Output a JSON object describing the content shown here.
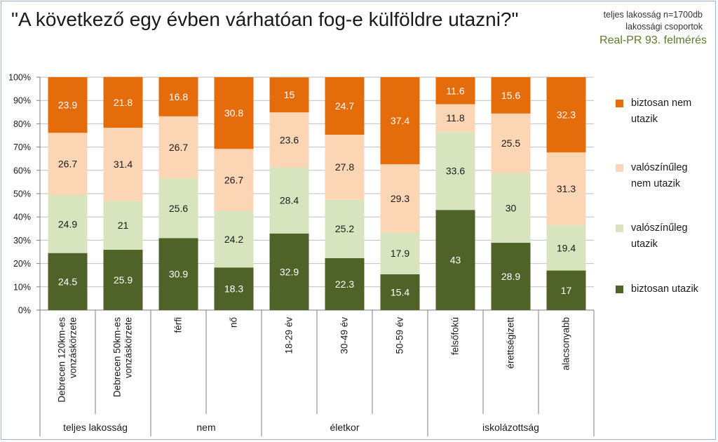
{
  "header": {
    "title": "\"A következő egy évben várhatóan fog-e külföldre utazni?\"",
    "note_line1": "teljes lakosság n=1700db",
    "note_line2": "lakossági csoportok",
    "source": "Real-PR 93. felmérés"
  },
  "chart_data": {
    "type": "bar",
    "stacked": true,
    "percent_stacked": true,
    "ylim": [
      0,
      100
    ],
    "y_ticks": [
      "0%",
      "10%",
      "20%",
      "30%",
      "40%",
      "50%",
      "60%",
      "70%",
      "80%",
      "90%",
      "100%"
    ],
    "grid": true,
    "legend_position": "right",
    "categories": [
      "Debrecen 120km-es vonzáskörzete",
      "Debrecen 50km-es vonzáskörzete",
      "férfi",
      "nő",
      "18-29 év",
      "30-49 év",
      "50-59 év",
      "felsőfokú",
      "érettségizett",
      "alacsonyabb"
    ],
    "category_lines": [
      [
        "Debrecen 120km-es",
        "vonzáskörzete"
      ],
      [
        "Debrecen 50km-es",
        "vonzáskörzete"
      ],
      [
        "férfi"
      ],
      [
        "nő"
      ],
      [
        "18-29 év"
      ],
      [
        "30-49 év"
      ],
      [
        "50-59 év"
      ],
      [
        "felsőfokú"
      ],
      [
        "érettségizett"
      ],
      [
        "alacsonyabb"
      ]
    ],
    "groups": [
      {
        "name": "teljes lakosság",
        "count": 2
      },
      {
        "name": "nem",
        "count": 2
      },
      {
        "name": "életkor",
        "count": 3
      },
      {
        "name": "iskolázottság",
        "count": 3
      }
    ],
    "series": [
      {
        "name": "biztosan utazik",
        "color": "#4f6228",
        "label_color": "#ffffff",
        "values": [
          24.5,
          25.9,
          30.9,
          18.3,
          32.9,
          22.3,
          15.4,
          43,
          28.9,
          17
        ]
      },
      {
        "name": "valószínűleg utazik",
        "color": "#d7e4bd",
        "label_color": "#1a1a1a",
        "values": [
          24.9,
          21,
          25.6,
          24.2,
          28.4,
          25.2,
          17.9,
          33.6,
          30,
          19.4
        ]
      },
      {
        "name": "valószínűleg nem utazik",
        "color": "#fcd5b5",
        "label_color": "#1a1a1a",
        "values": [
          26.7,
          31.4,
          26.7,
          26.7,
          23.6,
          27.8,
          29.3,
          11.8,
          25.5,
          31.3
        ]
      },
      {
        "name": "biztosan nem utazik",
        "color": "#e46c0a",
        "label_color": "#ffffff",
        "values": [
          23.9,
          21.8,
          16.8,
          30.8,
          15,
          24.7,
          37.4,
          11.6,
          15.6,
          32.3
        ]
      }
    ],
    "legend": [
      {
        "series": 3,
        "lines": [
          "biztosan nem",
          "utazik"
        ]
      },
      {
        "series": 2,
        "lines": [
          "valószínűleg",
          "nem utazik"
        ]
      },
      {
        "series": 1,
        "lines": [
          "valószínűleg",
          "utazik"
        ]
      },
      {
        "series": 0,
        "lines": [
          "biztosan utazik"
        ]
      }
    ]
  }
}
